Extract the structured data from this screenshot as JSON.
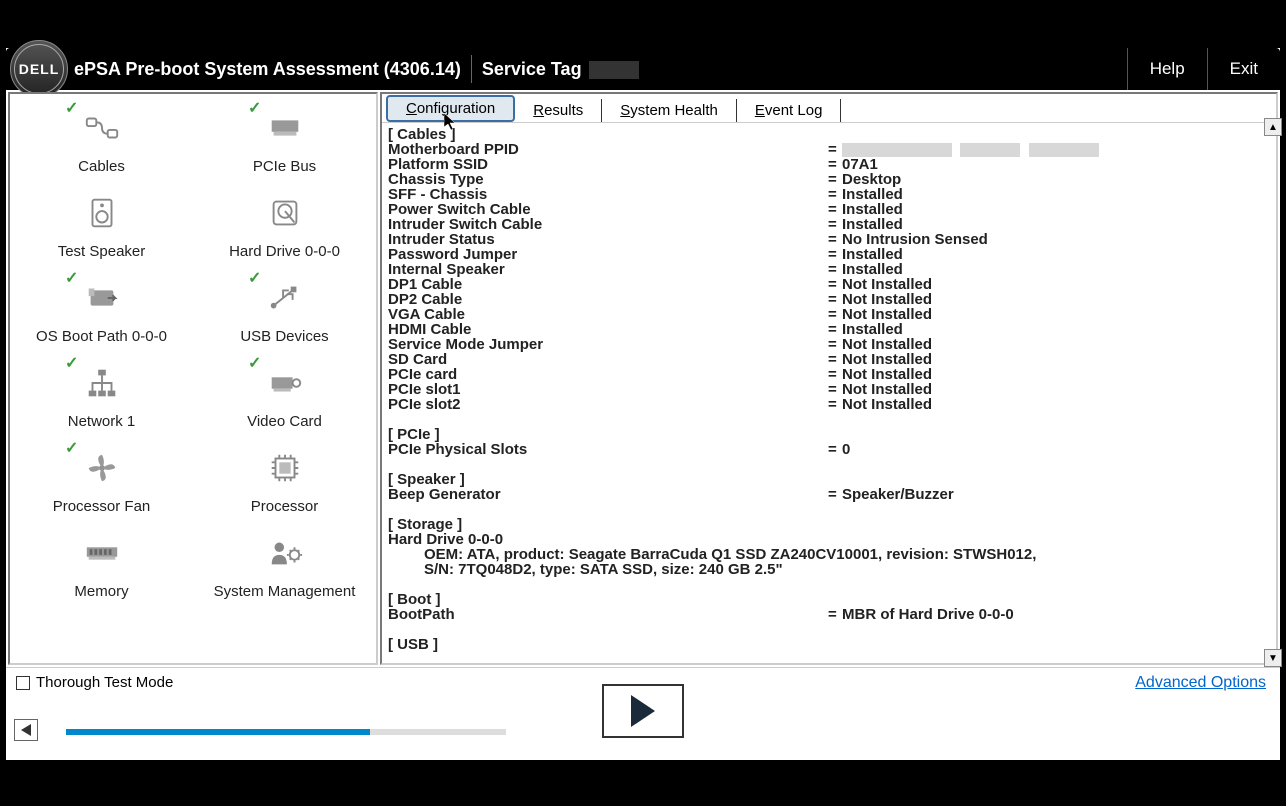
{
  "header": {
    "title": "ePSA Pre-boot System Assessment (4306.14)",
    "service_tag_label": "Service Tag",
    "help": "Help",
    "exit": "Exit",
    "logo_text": "DELL"
  },
  "hardware_items": [
    {
      "label": "Cables",
      "check": true,
      "icon": "cables"
    },
    {
      "label": "PCIe Bus",
      "check": true,
      "icon": "pciebus"
    },
    {
      "label": "Test Speaker",
      "check": false,
      "icon": "speaker"
    },
    {
      "label": "Hard Drive 0-0-0",
      "check": false,
      "icon": "hdd"
    },
    {
      "label": "OS Boot Path 0-0-0",
      "check": true,
      "icon": "bootpath"
    },
    {
      "label": "USB Devices",
      "check": true,
      "icon": "usb"
    },
    {
      "label": "Network 1",
      "check": true,
      "icon": "network"
    },
    {
      "label": "Video Card",
      "check": true,
      "icon": "video"
    },
    {
      "label": "Processor Fan",
      "check": true,
      "icon": "fan"
    },
    {
      "label": "Processor",
      "check": false,
      "icon": "cpu"
    },
    {
      "label": "Memory",
      "check": false,
      "icon": "memory"
    },
    {
      "label": "System Management",
      "check": false,
      "icon": "sysmgmt"
    }
  ],
  "tabs": [
    {
      "label": "Configuration",
      "key": "C",
      "active": true
    },
    {
      "label": "Results",
      "key": "R",
      "active": false
    },
    {
      "label": "System Health",
      "key": "S",
      "active": false
    },
    {
      "label": "Event Log",
      "key": "E",
      "active": false
    }
  ],
  "config": {
    "cables_section": "[ Cables ]",
    "rows1": [
      {
        "label": "Motherboard PPID",
        "value": "",
        "redacted": true
      },
      {
        "label": "Platform SSID",
        "value": "07A1"
      },
      {
        "label": "Chassis Type",
        "value": "Desktop"
      },
      {
        "label": "SFF - Chassis",
        "value": "Installed"
      },
      {
        "label": "Power Switch Cable",
        "value": "Installed"
      },
      {
        "label": "Intruder Switch Cable",
        "value": "Installed"
      },
      {
        "label": "Intruder Status",
        "value": "No Intrusion Sensed"
      },
      {
        "label": "Password Jumper",
        "value": "Installed"
      },
      {
        "label": "Internal Speaker",
        "value": "Installed"
      },
      {
        "label": "DP1 Cable",
        "value": "Not Installed"
      },
      {
        "label": "DP2 Cable",
        "value": "Not Installed"
      },
      {
        "label": "VGA Cable",
        "value": "Not Installed"
      },
      {
        "label": "HDMI Cable",
        "value": "Installed"
      },
      {
        "label": "Service Mode Jumper",
        "value": "Not Installed"
      },
      {
        "label": "SD Card",
        "value": "Not Installed"
      },
      {
        "label": "PCIe card",
        "value": "Not Installed"
      },
      {
        "label": "PCIe slot1",
        "value": "Not Installed"
      },
      {
        "label": "PCIe slot2",
        "value": "Not Installed"
      }
    ],
    "pcie_section": "[ PCIe ]",
    "pcie_row": {
      "label": "PCIe Physical Slots",
      "value": "0"
    },
    "speaker_section": "[ Speaker ]",
    "speaker_row": {
      "label": "Beep Generator",
      "value": "Speaker/Buzzer"
    },
    "storage_section": "[ Storage ]",
    "storage_drive": "Hard Drive 0-0-0",
    "storage_line1": "OEM: ATA, product: Seagate BarraCuda Q1 SSD ZA240CV10001, revision: STWSH012,",
    "storage_line2": "S/N: 7TQ048D2, type: SATA SSD, size: 240 GB 2.5\"",
    "boot_section": "[ Boot ]",
    "boot_row": {
      "label": "BootPath",
      "value": "MBR of Hard Drive 0-0-0"
    },
    "usb_section": "[ USB ]"
  },
  "footer": {
    "thorough": "Thorough Test Mode",
    "advanced": "Advanced Options",
    "progress_percent": 69
  },
  "colors": {
    "accent": "#0088cc",
    "check": "#3a9b3a",
    "tab_active_border": "#3b6ea5",
    "link": "#0066cc"
  }
}
